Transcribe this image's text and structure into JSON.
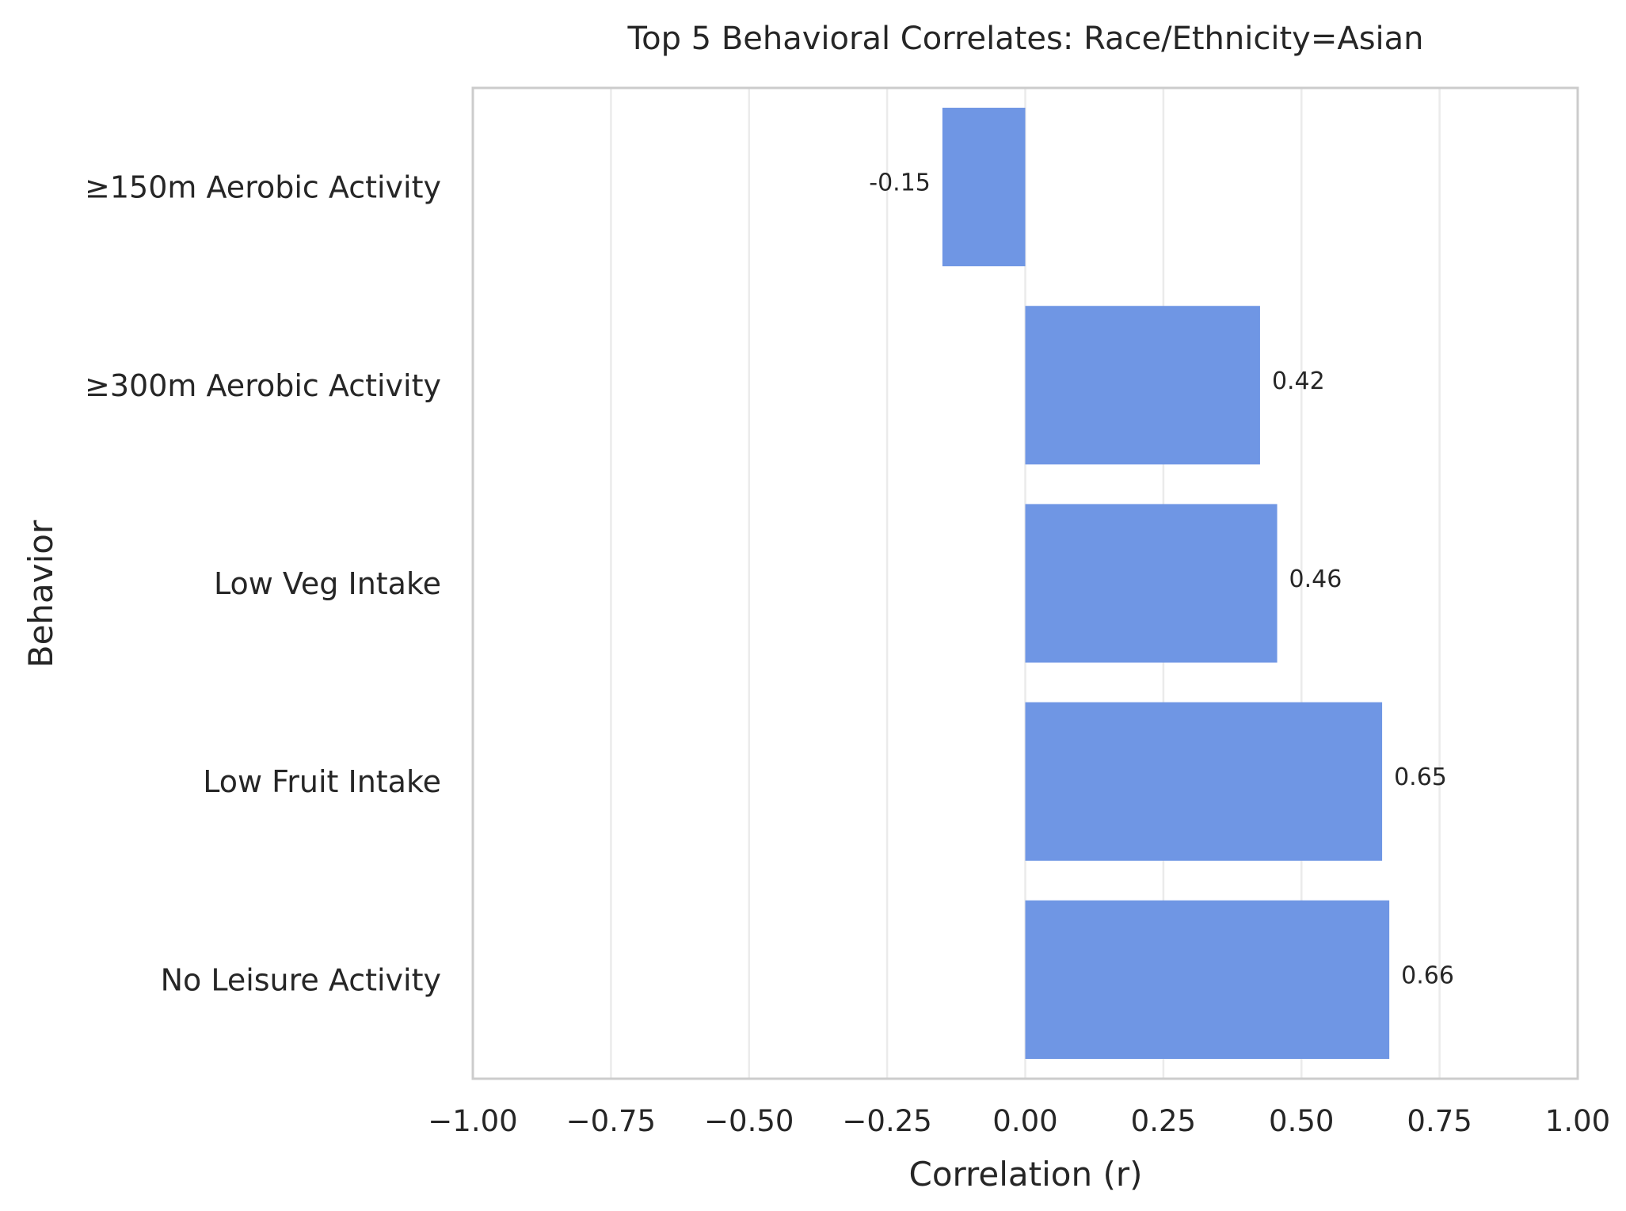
{
  "chart_data": {
    "type": "bar",
    "orientation": "horizontal",
    "title": "Top 5 Behavioral Correlates: Race/Ethnicity=Asian",
    "xlabel": "Correlation (r)",
    "ylabel": "Behavior",
    "xlim": [
      -1.0,
      1.0
    ],
    "xticks": [
      -1.0,
      -0.75,
      -0.5,
      -0.25,
      0.0,
      0.25,
      0.5,
      0.75,
      1.0
    ],
    "xtick_labels": [
      "−1.00",
      "−0.75",
      "−0.50",
      "−0.25",
      "0.00",
      "0.25",
      "0.50",
      "0.75",
      "1.00"
    ],
    "categories": [
      "≥150m Aerobic Activity",
      "≥300m Aerobic Activity",
      "Low Veg Intake",
      "Low Fruit Intake",
      "No Leisure Activity"
    ],
    "values": [
      -0.15,
      0.425,
      0.456,
      0.646,
      0.659
    ],
    "data_labels": [
      "-0.15",
      "0.42",
      "0.46",
      "0.65",
      "0.66"
    ],
    "grid": "vertical",
    "legend": "none",
    "colors": {
      "bar": "#6f96e4",
      "grid": "#ebebeb",
      "frame": "#cccccc",
      "text": "#262626"
    }
  }
}
